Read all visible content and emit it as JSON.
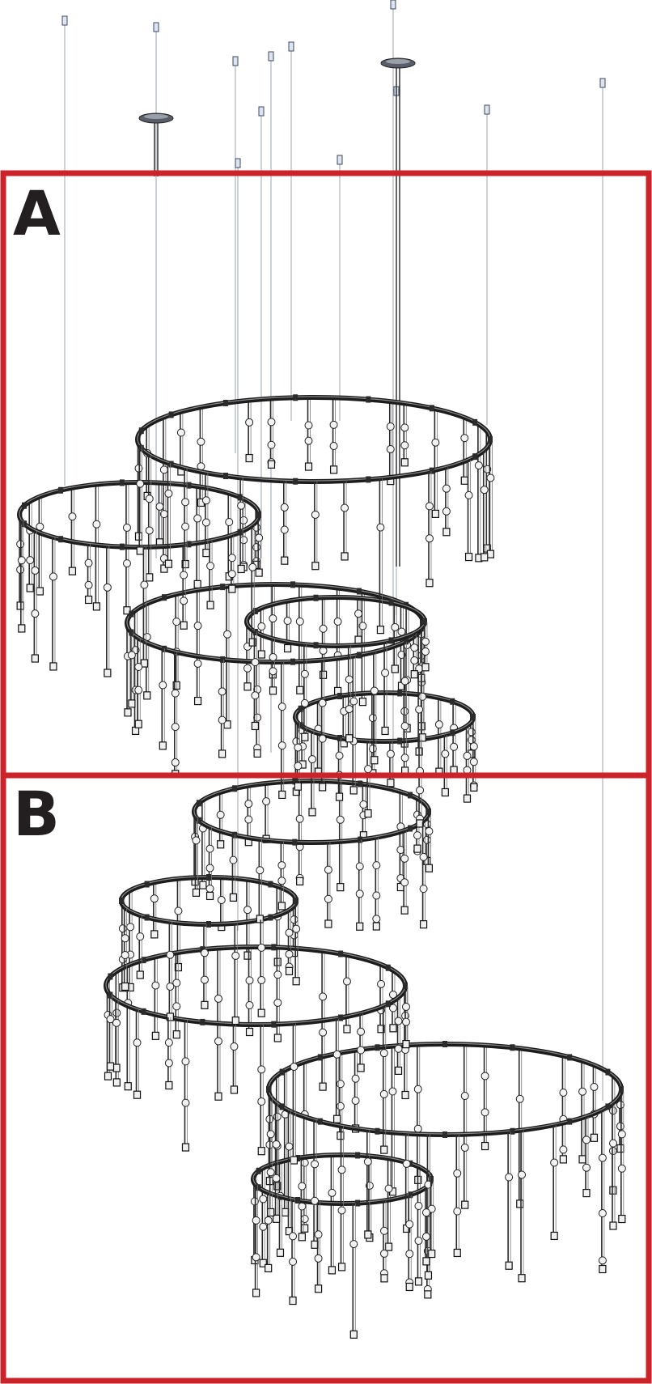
{
  "panels": [
    {
      "label": "A",
      "frame_color": "#cc2229"
    },
    {
      "label": "B",
      "frame_color": "#cc2229"
    }
  ],
  "colors": {
    "frame": "#cc2229",
    "label": "#231f20",
    "ring": "#1c1c1c",
    "ring_highlight": "#8a8a8a",
    "pendant": "#2a2a2a",
    "wire": "#9aa4b2",
    "canopy": "#5a5e68"
  }
}
